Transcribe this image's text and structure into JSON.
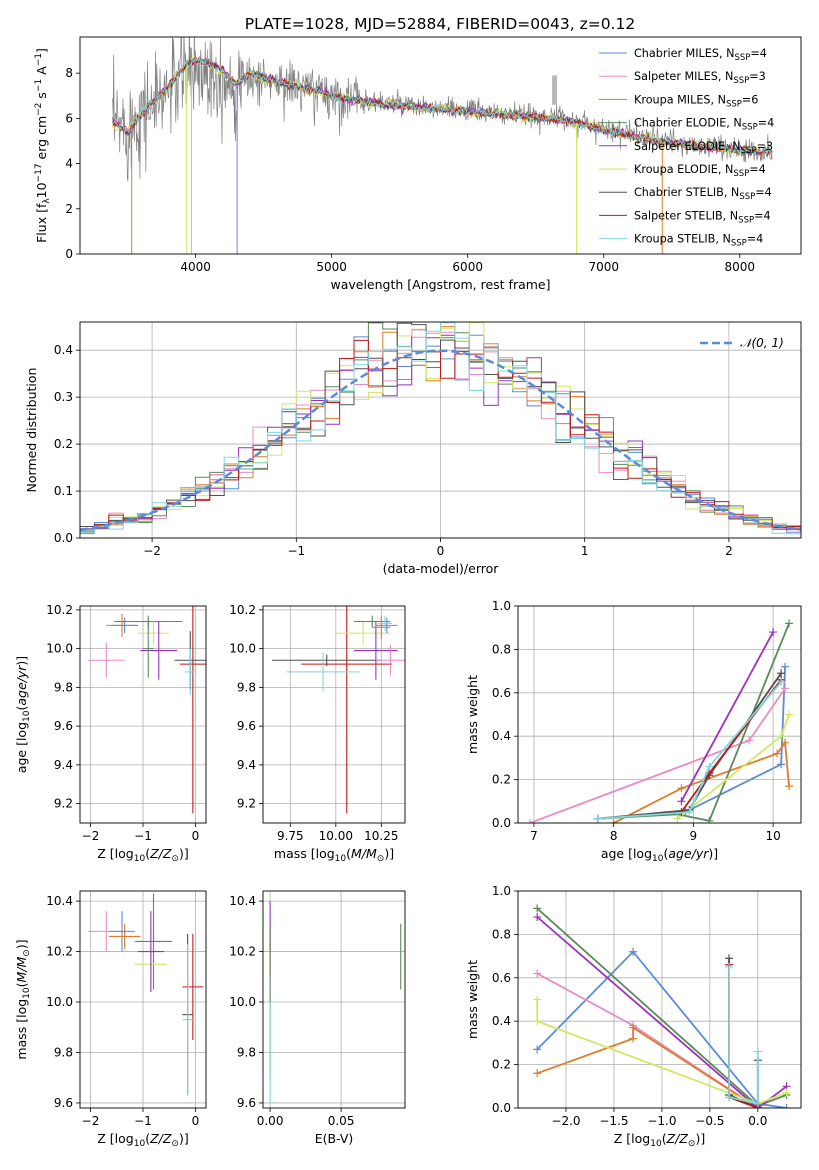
{
  "figure_title": "PLATE=1028, MJD=52884, FIBERID=0043, z=0.12",
  "colors": {
    "Chabrier MILES": "#5b8bd8",
    "Salpeter MILES": "#e88cc4",
    "Kroupa MILES": "#e07b2a",
    "Chabrier ELODIE": "#5a8a5a",
    "Salpeter ELODIE": "#9b30c0",
    "Kroupa ELODIE": "#cfe860",
    "Chabrier STELIB": "#505050",
    "Salpeter STELIB": "#c01818",
    "Kroupa STELIB": "#7fd6dc",
    "data": "#808080",
    "gauss": "#5b8bd8",
    "grid": "#b0b0b0"
  },
  "chart_data": [
    {
      "id": "spectrum",
      "type": "line",
      "title": "PLATE=1028, MJD=52884, FIBERID=0043, z=0.12",
      "xlabel": "wavelength [Angstrom, rest frame]",
      "ylabel": "Flux [f_λ 10^-17 erg cm^-2 s^-1 A^-1]",
      "xlim": [
        3150,
        8450
      ],
      "ylim": [
        0,
        9.6
      ],
      "xticks": [
        4000,
        5000,
        6000,
        7000,
        8000
      ],
      "yticks": [
        0,
        2,
        4,
        6,
        8
      ],
      "grid": false,
      "legend_position": "top-right",
      "legend": [
        {
          "label": "Chabrier MILES, N",
          "sub": "SSP",
          "suffix": "=4",
          "series": "Chabrier MILES"
        },
        {
          "label": "Salpeter MILES, N",
          "sub": "SSP",
          "suffix": "=3",
          "series": "Salpeter MILES"
        },
        {
          "label": "Kroupa MILES, N",
          "sub": "SSP",
          "suffix": "=6",
          "series": "Kroupa MILES"
        },
        {
          "label": "Chabrier ELODIE, N",
          "sub": "SSP",
          "suffix": "=4",
          "series": "Chabrier ELODIE"
        },
        {
          "label": "Salpeter ELODIE, N",
          "sub": "SSP",
          "suffix": "=3",
          "series": "Salpeter ELODIE"
        },
        {
          "label": "Kroupa ELODIE, N",
          "sub": "SSP",
          "suffix": "=4",
          "series": "Kroupa ELODIE"
        },
        {
          "label": "Chabrier STELIB, N",
          "sub": "SSP",
          "suffix": "=4",
          "series": "Chabrier STELIB"
        },
        {
          "label": "Salpeter STELIB, N",
          "sub": "SSP",
          "suffix": "=4",
          "series": "Salpeter STELIB"
        },
        {
          "label": "Kroupa STELIB, N",
          "sub": "SSP",
          "suffix": "=4",
          "series": "Kroupa STELIB"
        }
      ],
      "data_x": [
        3400,
        3500,
        3600,
        3700,
        3800,
        3900,
        4000,
        4100,
        4200,
        4300,
        4400,
        4500,
        4600,
        4700,
        4800,
        4900,
        5000,
        5200,
        5400,
        5600,
        5800,
        6000,
        6200,
        6400,
        6600,
        6800,
        7000,
        7200,
        7400,
        7600,
        7800,
        8000,
        8200
      ],
      "data_y": [
        5.7,
        5.6,
        6.3,
        6.6,
        7.3,
        7.9,
        8.2,
        8.1,
        7.9,
        7.4,
        7.8,
        7.7,
        7.6,
        7.5,
        7.3,
        7.2,
        7.0,
        6.8,
        6.7,
        6.5,
        6.4,
        6.4,
        6.2,
        6.1,
        6.1,
        5.9,
        5.6,
        5.3,
        5.1,
        4.8,
        4.8,
        4.6,
        4.5
      ],
      "model_x": [
        3400,
        3500,
        3600,
        3700,
        3800,
        3900,
        4000,
        4100,
        4200,
        4300,
        4400,
        4500,
        4600,
        4700,
        4800,
        4900,
        5000,
        5200,
        5400,
        5600,
        5800,
        6000,
        6200,
        6400,
        6600,
        6800,
        7000,
        7200,
        7400,
        7600,
        7800,
        8000,
        8200
      ],
      "model_y": [
        5.8,
        5.4,
        6.2,
        6.8,
        7.4,
        8.2,
        8.6,
        8.4,
        8.1,
        7.5,
        8.0,
        7.8,
        7.6,
        7.5,
        7.3,
        7.2,
        7.0,
        6.8,
        6.6,
        6.5,
        6.4,
        6.3,
        6.2,
        6.1,
        6.0,
        5.8,
        5.5,
        5.2,
        5.0,
        4.8,
        4.7,
        4.6,
        4.5
      ],
      "absorption_lines_x": [
        3934,
        3969,
        4305,
        6800,
        7430,
        3530
      ]
    },
    {
      "id": "residuals",
      "type": "histogram",
      "xlabel": "(data-model)/error",
      "ylabel": "Normed distribution",
      "xlim": [
        -2.5,
        2.5
      ],
      "ylim": [
        0,
        0.46
      ],
      "xticks": [
        -2,
        -1,
        0,
        1,
        2
      ],
      "yticks": [
        0.0,
        0.1,
        0.2,
        0.3,
        0.4
      ],
      "grid": true,
      "legend_position": "top-right",
      "legend": [
        {
          "label": "𝒩(0, 1)",
          "series": "gauss"
        }
      ],
      "bin_width": 0.1,
      "bin_start": -2.5,
      "series_names": [
        "Chabrier MILES",
        "Salpeter MILES",
        "Kroupa MILES",
        "Chabrier ELODIE",
        "Salpeter ELODIE",
        "Kroupa ELODIE",
        "Chabrier STELIB",
        "Salpeter STELIB",
        "Kroupa STELIB"
      ],
      "gaussian": {
        "mean": 0,
        "sigma": 1
      }
    },
    {
      "id": "age-vs-Z",
      "type": "errorbar",
      "xlabel": "Z [log10(Z/Z⊙)]",
      "ylabel": "age  [log10(age/yr)]",
      "xlim": [
        -2.2,
        0.2
      ],
      "ylim": [
        9.1,
        10.22
      ],
      "xticks": [
        -2,
        -1,
        0
      ],
      "yticks": [
        9.2,
        9.4,
        9.6,
        9.8,
        10.0,
        10.2
      ],
      "grid": true,
      "points": [
        {
          "series": "Salpeter MILES",
          "x": -1.7,
          "y": 9.94,
          "xerr": 0.35,
          "yerr": 0.09
        },
        {
          "series": "Kroupa MILES",
          "x": -1.4,
          "y": 10.12,
          "xerr": 0.3,
          "yerr": 0.06
        },
        {
          "series": "Chabrier MILES",
          "x": -1.35,
          "y": 10.12,
          "xerr": 0.25,
          "yerr": 0.04
        },
        {
          "series": "Chabrier ELODIE",
          "x": -0.9,
          "y": 10.14,
          "xerr": 0.65,
          "yerr": 0.03
        },
        {
          "series": "Kroupa ELODIE",
          "x": -0.8,
          "y": 10.08,
          "xerr": 0.3,
          "yerr": 0.06
        },
        {
          "series": "Salpeter ELODIE",
          "x": -0.7,
          "y": 9.99,
          "xerr": 0.35,
          "yerr": 0.15
        },
        {
          "series": "Chabrier ELODIE",
          "x": -0.9,
          "y": 10.0,
          "xerr": 0.1,
          "yerr": 0.15
        },
        {
          "series": "Chabrier STELIB",
          "x": -0.1,
          "y": 9.94,
          "xerr": 0.3,
          "yerr": 0.15
        },
        {
          "series": "Salpeter STELIB",
          "x": -0.05,
          "y": 9.92,
          "xerr": 0.25,
          "yerr": 0.77
        },
        {
          "series": "Kroupa STELIB",
          "x": -0.1,
          "y": 9.88,
          "xerr": 0.1,
          "yerr": 0.12
        }
      ]
    },
    {
      "id": "age-vs-mass",
      "type": "errorbar",
      "xlabel": "mass [log10(M/M⊙)]",
      "ylabel": "",
      "xlim": [
        9.6,
        10.38
      ],
      "ylim": [
        9.1,
        10.22
      ],
      "xticks": [
        9.75,
        10.0,
        10.25
      ],
      "xticklabels": [
        "9.75",
        "10.00",
        "10.25"
      ],
      "yticks": [
        9.2,
        9.4,
        9.6,
        9.8,
        10.0,
        10.2
      ],
      "grid": true,
      "points": [
        {
          "series": "Chabrier STELIB",
          "x": 9.95,
          "y": 9.94,
          "xerr": 0.3,
          "yerr": 0.03
        },
        {
          "series": "Salpeter STELIB",
          "x": 10.06,
          "y": 9.92,
          "xerr": 0.25,
          "yerr": 0.77
        },
        {
          "series": "Kroupa STELIB",
          "x": 9.93,
          "y": 9.88,
          "xerr": 0.2,
          "yerr": 0.1
        },
        {
          "series": "Kroupa ELODIE",
          "x": 10.15,
          "y": 10.08,
          "xerr": 0.15,
          "yerr": 0.06
        },
        {
          "series": "Chabrier ELODIE",
          "x": 10.2,
          "y": 10.14,
          "xerr": 0.1,
          "yerr": 0.03
        },
        {
          "series": "Salpeter ELODIE",
          "x": 10.22,
          "y": 9.99,
          "xerr": 0.12,
          "yerr": 0.15
        },
        {
          "series": "Chabrier MILES",
          "x": 10.28,
          "y": 10.12,
          "xerr": 0.06,
          "yerr": 0.04
        },
        {
          "series": "Salpeter MILES",
          "x": 10.3,
          "y": 9.94,
          "xerr": 0.08,
          "yerr": 0.08
        },
        {
          "series": "Kroupa MILES",
          "x": 10.25,
          "y": 10.11,
          "xerr": 0.05,
          "yerr": 0.06
        },
        {
          "series": "Kroupa STELIB",
          "x": 10.27,
          "y": 10.13,
          "xerr": 0.04,
          "yerr": 0.04
        }
      ]
    },
    {
      "id": "weight-vs-age",
      "type": "line",
      "xlabel": "age  [log10(age/yr)]",
      "ylabel": "mass weight",
      "xlim": [
        6.8,
        10.35
      ],
      "ylim": [
        0,
        1.0
      ],
      "xticks": [
        7,
        8,
        9,
        10
      ],
      "yticks": [
        0.0,
        0.2,
        0.4,
        0.6,
        0.8,
        1.0
      ],
      "grid": true,
      "series": [
        {
          "name": "Chabrier MILES",
          "x": [
            7.8,
            8.9,
            10.1,
            10.15
          ],
          "y": [
            0.02,
            0.05,
            0.27,
            0.72
          ]
        },
        {
          "name": "Salpeter MILES",
          "x": [
            6.95,
            9.7,
            10.15
          ],
          "y": [
            0.0,
            0.38,
            0.62
          ]
        },
        {
          "name": "Kroupa MILES",
          "x": [
            8.0,
            8.85,
            10.05,
            10.15,
            10.2
          ],
          "y": [
            0.0,
            0.16,
            0.32,
            0.37,
            0.17
          ]
        },
        {
          "name": "Chabrier ELODIE",
          "x": [
            7.8,
            8.8,
            9.2,
            10.2
          ],
          "y": [
            0.02,
            0.04,
            0.01,
            0.92
          ]
        },
        {
          "name": "Salpeter ELODIE",
          "x": [
            8.85,
            10.0
          ],
          "y": [
            0.1,
            0.88
          ]
        },
        {
          "name": "Kroupa ELODIE",
          "x": [
            8.8,
            10.1,
            10.2
          ],
          "y": [
            0.02,
            0.4,
            0.5
          ]
        },
        {
          "name": "Chabrier STELIB",
          "x": [
            7.8,
            8.95,
            9.2,
            10.1
          ],
          "y": [
            0.02,
            0.06,
            0.22,
            0.69
          ]
        },
        {
          "name": "Salpeter STELIB",
          "x": [
            8.85,
            9.2,
            10.1
          ],
          "y": [
            0.05,
            0.23,
            0.66
          ]
        },
        {
          "name": "Kroupa STELIB",
          "x": [
            7.8,
            8.95,
            9.2,
            10.1
          ],
          "y": [
            0.02,
            0.05,
            0.26,
            0.65
          ]
        }
      ]
    },
    {
      "id": "mass-vs-Z",
      "type": "errorbar",
      "xlabel": "Z [log10(Z/Z⊙)]",
      "ylabel": "mass [log10(M/M⊙)]",
      "xlim": [
        -2.2,
        0.2
      ],
      "ylim": [
        9.58,
        10.44
      ],
      "xticks": [
        -2,
        -1,
        0
      ],
      "yticks": [
        9.6,
        9.8,
        10.0,
        10.2,
        10.4
      ],
      "grid": true,
      "points": [
        {
          "series": "Salpeter MILES",
          "x": -1.7,
          "y": 10.28,
          "xerr": 0.35,
          "yerr": 0.08
        },
        {
          "series": "Chabrier MILES",
          "x": -1.4,
          "y": 10.28,
          "xerr": 0.25,
          "yerr": 0.08
        },
        {
          "series": "Kroupa MILES",
          "x": -1.35,
          "y": 10.26,
          "xerr": 0.3,
          "yerr": 0.05
        },
        {
          "series": "Chabrier ELODIE",
          "x": -0.8,
          "y": 10.24,
          "xerr": 0.35,
          "yerr": 0.19
        },
        {
          "series": "Kroupa ELODIE",
          "x": -0.85,
          "y": 10.15,
          "xerr": 0.3,
          "yerr": 0.1
        },
        {
          "series": "Salpeter ELODIE",
          "x": -0.85,
          "y": 10.2,
          "xerr": 0.25,
          "yerr": 0.16
        },
        {
          "series": "Chabrier STELIB",
          "x": -0.15,
          "y": 9.95,
          "xerr": 0.1,
          "yerr": 0.32
        },
        {
          "series": "Salpeter STELIB",
          "x": -0.05,
          "y": 10.06,
          "xerr": 0.2,
          "yerr": 0.21
        },
        {
          "series": "Kroupa STELIB",
          "x": -0.15,
          "y": 9.93,
          "xerr": 0.1,
          "yerr": 0.3
        }
      ]
    },
    {
      "id": "mass-vs-EBV",
      "type": "errorbar",
      "xlabel": "E(B-V)",
      "ylabel": "",
      "xlim": [
        -0.005,
        0.095
      ],
      "ylim": [
        9.58,
        10.44
      ],
      "xticks": [
        0.0,
        0.05
      ],
      "xticklabels": [
        "0.00",
        "0.05"
      ],
      "yticks": [
        9.6,
        9.8,
        10.0,
        10.2,
        10.4
      ],
      "grid": true,
      "points": [
        {
          "series": "Salpeter ELODIE",
          "x": 0.0,
          "y": 10.3,
          "xerr": 0,
          "yerr": 0.1
        },
        {
          "series": "Salpeter STELIB",
          "x": 0.0,
          "y": 10.2,
          "xerr": 0,
          "yerr": 0.1
        },
        {
          "series": "Chabrier ELODIE",
          "x": 0.0,
          "y": 10.0,
          "xerr": 0,
          "yerr": 0.3
        },
        {
          "series": "Kroupa STELIB",
          "x": 0.0,
          "y": 9.8,
          "xerr": 0,
          "yerr": 0.2
        },
        {
          "series": "Chabrier ELODIE",
          "x": 0.092,
          "y": 10.18,
          "xerr": 0,
          "yerr": 0.13
        }
      ]
    },
    {
      "id": "weight-vs-Z",
      "type": "line",
      "xlabel": "Z [log10(Z/Z⊙)]",
      "ylabel": "mass weight",
      "xlim": [
        -2.5,
        0.45
      ],
      "ylim": [
        0,
        1.0
      ],
      "xticks": [
        -2.0,
        -1.5,
        -1.0,
        -0.5,
        0.0
      ],
      "xticklabels": [
        "−2.0",
        "−1.5",
        "−1.0",
        "−0.5",
        "0.0"
      ],
      "yticks": [
        0.0,
        0.2,
        0.4,
        0.6,
        0.8,
        1.0
      ],
      "grid": true,
      "series": [
        {
          "name": "Chabrier MILES",
          "x": [
            -2.3,
            -1.3,
            0.0,
            0.3
          ],
          "y": [
            0.27,
            0.72,
            0.02,
            0.0
          ]
        },
        {
          "name": "Salpeter MILES",
          "x": [
            -2.3,
            -1.3,
            0.0
          ],
          "y": [
            0.62,
            0.38,
            0.0
          ]
        },
        {
          "name": "Kroupa MILES",
          "x": [
            -2.3,
            -1.3,
            -1.3,
            0.0
          ],
          "y": [
            0.16,
            0.32,
            0.37,
            0.0
          ]
        },
        {
          "name": "Chabrier ELODIE",
          "x": [
            -2.3,
            0.0,
            0.3
          ],
          "y": [
            0.92,
            0.01,
            0.06
          ]
        },
        {
          "name": "Salpeter ELODIE",
          "x": [
            -2.3,
            0.0,
            0.3
          ],
          "y": [
            0.88,
            0.0,
            0.1
          ]
        },
        {
          "name": "Kroupa ELODIE",
          "x": [
            -2.3,
            -2.3,
            0.0,
            0.3
          ],
          "y": [
            0.5,
            0.4,
            0.02,
            0.07
          ]
        },
        {
          "name": "Chabrier STELIB",
          "x": [
            -0.3,
            -0.3,
            0.0,
            0.0
          ],
          "y": [
            0.69,
            0.06,
            0.0,
            0.22
          ]
        },
        {
          "name": "Salpeter STELIB",
          "x": [
            -0.3,
            -0.3,
            0.0
          ],
          "y": [
            0.66,
            0.05,
            0.0
          ]
        },
        {
          "name": "Kroupa STELIB",
          "x": [
            -0.3,
            -0.3,
            0.0,
            0.0
          ],
          "y": [
            0.65,
            0.05,
            0.02,
            0.26
          ]
        }
      ]
    }
  ]
}
